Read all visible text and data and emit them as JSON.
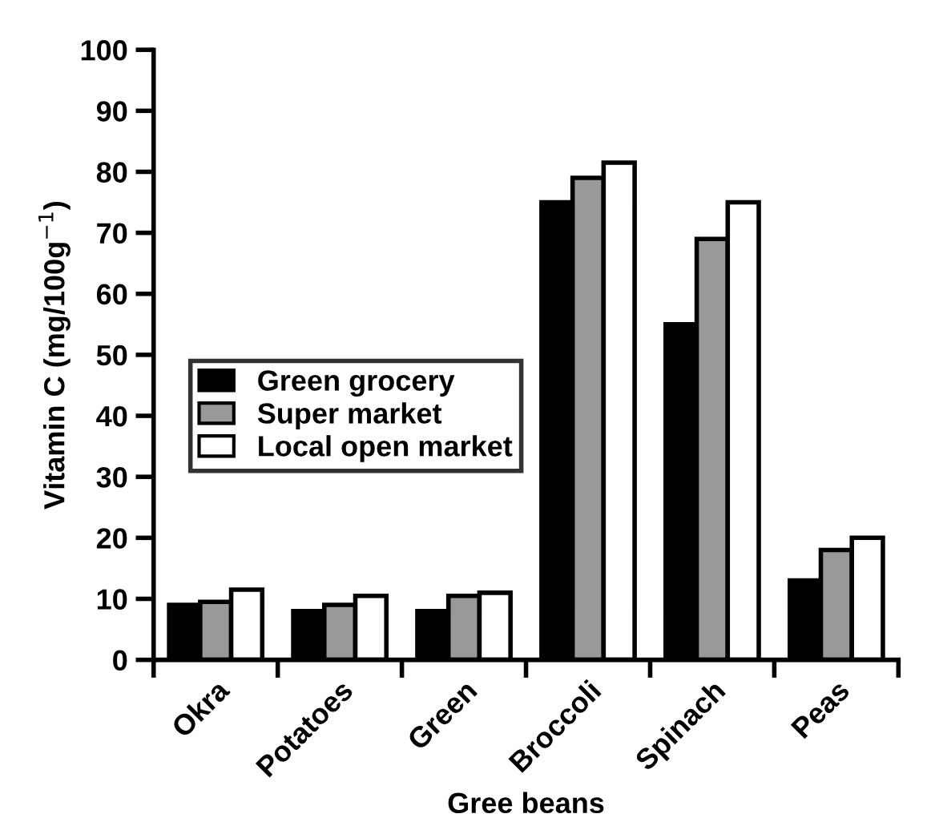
{
  "chart_data": {
    "type": "bar",
    "xlabel": "Gree beans",
    "ylabel": "Vitamin C (mg/100g$^{−1}$)",
    "categories": [
      "Okra",
      "Potatoes",
      "Green",
      "Broccoli",
      "Spinach",
      "Peas"
    ],
    "series": [
      {
        "name": "Green grocery",
        "color": "#000000",
        "values": [
          9,
          8,
          8,
          75,
          55,
          13
        ]
      },
      {
        "name": "Super market",
        "color": "#999999",
        "values": [
          9.5,
          9,
          10.5,
          79,
          69,
          18
        ]
      },
      {
        "name": "Local open market",
        "color": "#ffffff",
        "values": [
          11.5,
          10.5,
          11,
          81.5,
          75,
          20
        ]
      }
    ],
    "ylim": [
      0,
      100
    ],
    "yticks": [
      0,
      10,
      20,
      30,
      40,
      50,
      60,
      70,
      80,
      90,
      100
    ],
    "legend": "left",
    "grid": false
  }
}
